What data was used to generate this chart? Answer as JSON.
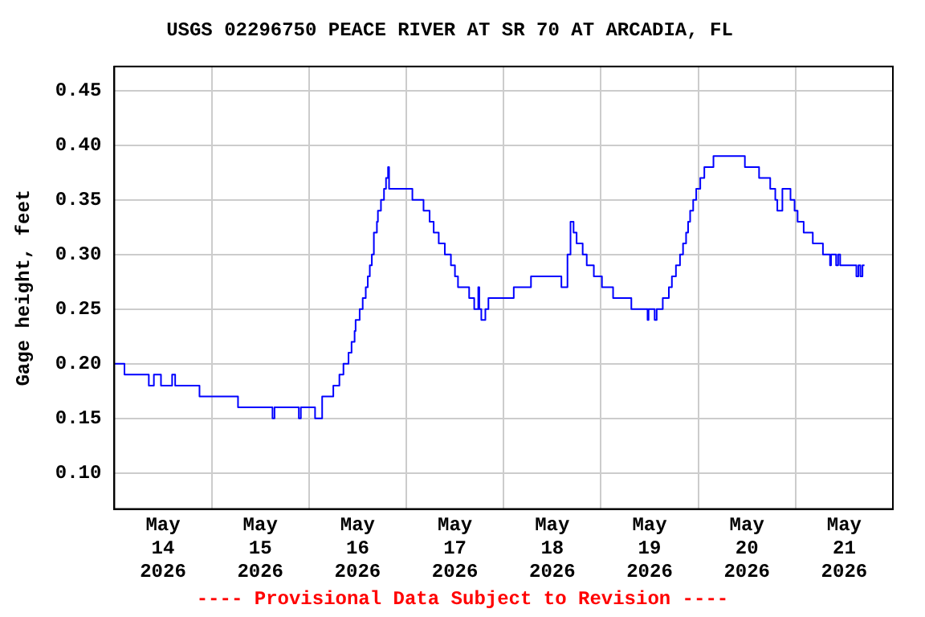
{
  "chart_data": {
    "type": "step",
    "title": "USGS 02296750 PEACE RIVER AT SR 70 AT ARCADIA, FL",
    "ylabel": "Gage height, feet",
    "annotations": [
      "---- Provisional Data Subject to Revision ----"
    ],
    "xlim": [
      "2026-05-14T00:00",
      "2026-05-22T00:00"
    ],
    "xticks": [
      {
        "value": "2026-05-14T12:00",
        "label": "May\n14\n2026"
      },
      {
        "value": "2026-05-15T00:00",
        "label": null
      },
      {
        "value": "2026-05-15T12:00",
        "label": "May\n15\n2026"
      },
      {
        "value": "2026-05-16T00:00",
        "label": null
      },
      {
        "value": "2026-05-16T12:00",
        "label": "May\n16\n2026"
      },
      {
        "value": "2026-05-17T00:00",
        "label": null
      },
      {
        "value": "2026-05-17T12:00",
        "label": "May\n17\n2026"
      },
      {
        "value": "2026-05-18T00:00",
        "label": null
      },
      {
        "value": "2026-05-18T12:00",
        "label": "May\n18\n2026"
      },
      {
        "value": "2026-05-19T00:00",
        "label": null
      },
      {
        "value": "2026-05-19T12:00",
        "label": "May\n19\n2026"
      },
      {
        "value": "2026-05-20T00:00",
        "label": null
      },
      {
        "value": "2026-05-20T12:00",
        "label": "May\n20\n2026"
      },
      {
        "value": "2026-05-21T00:00",
        "label": null
      },
      {
        "value": "2026-05-21T12:00",
        "label": "May\n21\n2026"
      }
    ],
    "ylim": [
      0.067,
      0.472
    ],
    "yticks": [
      {
        "value": 0.1,
        "label": "0.10"
      },
      {
        "value": 0.15,
        "label": "0.15"
      },
      {
        "value": 0.2,
        "label": "0.20"
      },
      {
        "value": 0.25,
        "label": "0.25"
      },
      {
        "value": 0.3,
        "label": "0.30"
      },
      {
        "value": 0.35,
        "label": "0.35"
      },
      {
        "value": 0.4,
        "label": "0.40"
      },
      {
        "value": 0.45,
        "label": "0.45"
      }
    ],
    "grid": true,
    "legend": false,
    "marker": "none",
    "line_style": "solid",
    "series": [
      {
        "color": "#0000ff",
        "x": [
          "2026-05-14T00:00",
          "2026-05-14T02:30",
          "2026-05-14T08:30",
          "2026-05-14T09:45",
          "2026-05-14T11:30",
          "2026-05-14T14:15",
          "2026-05-14T15:00",
          "2026-05-14T21:00",
          "2026-05-15T06:30",
          "2026-05-15T15:00",
          "2026-05-15T15:30",
          "2026-05-15T21:30",
          "2026-05-15T22:00",
          "2026-05-16T01:30",
          "2026-05-16T03:15",
          "2026-05-16T06:00",
          "2026-05-16T07:30",
          "2026-05-16T08:30",
          "2026-05-16T09:45",
          "2026-05-16T10:30",
          "2026-05-16T11:15",
          "2026-05-16T11:30",
          "2026-05-16T12:30",
          "2026-05-16T13:15",
          "2026-05-16T14:00",
          "2026-05-16T14:30",
          "2026-05-16T15:00",
          "2026-05-16T15:30",
          "2026-05-16T16:00",
          "2026-05-16T16:45",
          "2026-05-16T17:00",
          "2026-05-16T17:45",
          "2026-05-16T18:30",
          "2026-05-16T19:00",
          "2026-05-16T19:30",
          "2026-05-16T19:45",
          "2026-05-17T01:30",
          "2026-05-17T04:15",
          "2026-05-17T05:45",
          "2026-05-17T06:45",
          "2026-05-17T08:00",
          "2026-05-17T09:30",
          "2026-05-17T11:00",
          "2026-05-17T12:00",
          "2026-05-17T12:45",
          "2026-05-17T15:30",
          "2026-05-17T16:45",
          "2026-05-17T17:45",
          "2026-05-17T18:00",
          "2026-05-17T18:30",
          "2026-05-17T19:30",
          "2026-05-17T20:15",
          "2026-05-18T02:30",
          "2026-05-18T06:45",
          "2026-05-18T14:15",
          "2026-05-18T15:45",
          "2026-05-18T16:30",
          "2026-05-18T17:15",
          "2026-05-18T18:00",
          "2026-05-18T19:30",
          "2026-05-18T20:30",
          "2026-05-18T22:15",
          "2026-05-19T00:15",
          "2026-05-19T03:00",
          "2026-05-19T07:30",
          "2026-05-19T11:30",
          "2026-05-19T11:45",
          "2026-05-19T13:15",
          "2026-05-19T13:45",
          "2026-05-19T15:15",
          "2026-05-19T16:45",
          "2026-05-19T17:30",
          "2026-05-19T18:30",
          "2026-05-19T19:30",
          "2026-05-19T20:15",
          "2026-05-19T21:00",
          "2026-05-19T21:30",
          "2026-05-19T22:00",
          "2026-05-19T22:45",
          "2026-05-19T23:30",
          "2026-05-20T00:30",
          "2026-05-20T01:30",
          "2026-05-20T03:45",
          "2026-05-20T11:30",
          "2026-05-20T15:00",
          "2026-05-20T17:45",
          "2026-05-20T19:00",
          "2026-05-20T19:30",
          "2026-05-20T20:45",
          "2026-05-20T22:45",
          "2026-05-20T23:45",
          "2026-05-21T00:30",
          "2026-05-21T02:00",
          "2026-05-21T04:15",
          "2026-05-21T06:45",
          "2026-05-21T08:30",
          "2026-05-21T08:45",
          "2026-05-21T10:00",
          "2026-05-21T10:30",
          "2026-05-21T11:00",
          "2026-05-21T15:00",
          "2026-05-21T15:30",
          "2026-05-21T16:00",
          "2026-05-21T16:30",
          "2026-05-21T17:00"
        ],
        "values": [
          0.2,
          0.19,
          0.18,
          0.19,
          0.18,
          0.19,
          0.18,
          0.17,
          0.16,
          0.15,
          0.16,
          0.15,
          0.16,
          0.15,
          0.17,
          0.18,
          0.19,
          0.2,
          0.21,
          0.22,
          0.23,
          0.24,
          0.25,
          0.26,
          0.27,
          0.28,
          0.29,
          0.3,
          0.32,
          0.33,
          0.34,
          0.35,
          0.36,
          0.37,
          0.38,
          0.36,
          0.35,
          0.34,
          0.33,
          0.32,
          0.31,
          0.3,
          0.29,
          0.28,
          0.27,
          0.26,
          0.25,
          0.27,
          0.25,
          0.24,
          0.25,
          0.26,
          0.27,
          0.28,
          0.27,
          0.3,
          0.33,
          0.32,
          0.31,
          0.3,
          0.29,
          0.28,
          0.27,
          0.26,
          0.25,
          0.24,
          0.25,
          0.24,
          0.25,
          0.26,
          0.27,
          0.28,
          0.29,
          0.3,
          0.31,
          0.32,
          0.33,
          0.34,
          0.35,
          0.36,
          0.37,
          0.38,
          0.39,
          0.38,
          0.37,
          0.36,
          0.35,
          0.34,
          0.36,
          0.35,
          0.34,
          0.33,
          0.32,
          0.31,
          0.3,
          0.29,
          0.3,
          0.29,
          0.3,
          0.29,
          0.28,
          0.29,
          0.28,
          0.29,
          0.29
        ]
      }
    ]
  }
}
